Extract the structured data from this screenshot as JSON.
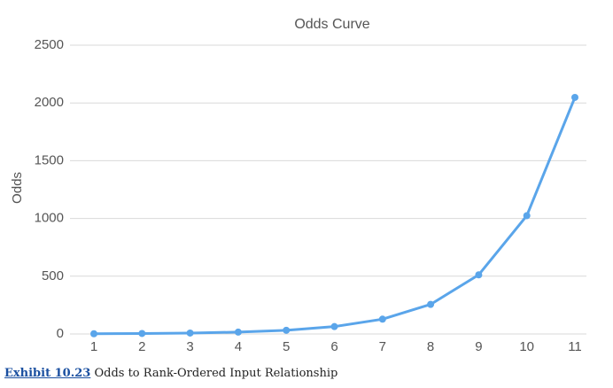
{
  "chart_data": {
    "type": "line",
    "title": "Odds Curve",
    "y_label": "Odds",
    "categories": [
      "1",
      "2",
      "3",
      "4",
      "5",
      "6",
      "7",
      "8",
      "9",
      "10",
      "11"
    ],
    "series": [
      {
        "name": "Odds",
        "color": "#5aa5ea",
        "values": [
          2,
          4,
          8,
          16,
          32,
          64,
          128,
          256,
          512,
          1024,
          2048
        ]
      }
    ],
    "ylim": [
      0,
      2500
    ],
    "yticks": [
      0,
      500,
      1000,
      1500,
      2000,
      2500
    ],
    "grid": true
  },
  "caption": {
    "label": "Exhibit 10.23",
    "text": "Odds to Rank-Ordered Input Relationship"
  }
}
